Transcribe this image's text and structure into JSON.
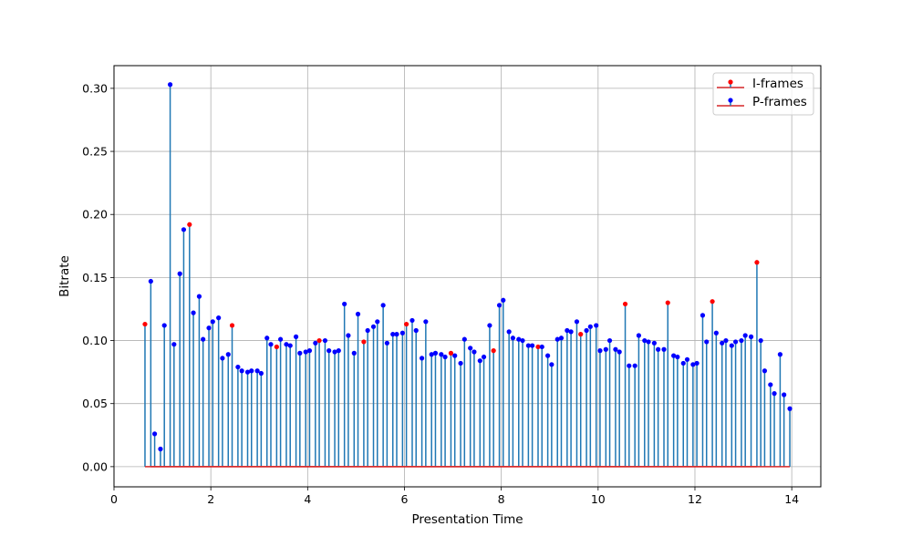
{
  "chart_data": {
    "type": "stem",
    "title": "",
    "xlabel": "Presentation Time",
    "ylabel": "Bitrate",
    "xlim": [
      0,
      14.6
    ],
    "ylim": [
      -0.016,
      0.318
    ],
    "xticks": [
      0,
      2,
      4,
      6,
      8,
      10,
      12,
      14
    ],
    "yticks": [
      0.0,
      0.05,
      0.1,
      0.15,
      0.2,
      0.25,
      0.3
    ],
    "ytick_labels": [
      "0.00",
      "0.05",
      "0.10",
      "0.15",
      "0.20",
      "0.25",
      "0.30"
    ],
    "grid": true,
    "legend_position": "top-right",
    "stem_color": "#1f77b4",
    "baseline_color": "#d62728",
    "series": [
      {
        "name": "I-frames",
        "marker_color": "#ff0000",
        "x": [
          0.64,
          1.56,
          2.44,
          3.36,
          4.24,
          5.16,
          6.04,
          6.96,
          7.84,
          8.76,
          9.64,
          10.56,
          11.44,
          12.36,
          13.28
        ],
        "y": [
          0.113,
          0.192,
          0.112,
          0.095,
          0.1,
          0.099,
          0.113,
          0.09,
          0.092,
          0.095,
          0.105,
          0.129,
          0.13,
          0.131,
          0.162
        ]
      },
      {
        "name": "P-frames",
        "marker_color": "#0000ff",
        "x": [
          0.76,
          0.84,
          0.96,
          1.04,
          1.16,
          1.24,
          1.36,
          1.44,
          1.64,
          1.76,
          1.84,
          1.96,
          2.04,
          2.16,
          2.24,
          2.36,
          2.56,
          2.64,
          2.76,
          2.84,
          2.96,
          3.04,
          3.16,
          3.24,
          3.44,
          3.56,
          3.64,
          3.76,
          3.84,
          3.96,
          4.04,
          4.16,
          4.36,
          4.44,
          4.56,
          4.64,
          4.76,
          4.84,
          4.96,
          5.04,
          5.24,
          5.36,
          5.44,
          5.56,
          5.64,
          5.76,
          5.84,
          5.96,
          6.16,
          6.24,
          6.36,
          6.44,
          6.56,
          6.64,
          6.76,
          6.84,
          7.04,
          7.16,
          7.24,
          7.36,
          7.44,
          7.56,
          7.64,
          7.76,
          7.96,
          8.04,
          8.16,
          8.24,
          8.36,
          8.44,
          8.56,
          8.64,
          8.84,
          8.96,
          9.04,
          9.16,
          9.24,
          9.36,
          9.44,
          9.56,
          9.76,
          9.84,
          9.96,
          10.04,
          10.16,
          10.24,
          10.36,
          10.44,
          10.64,
          10.76,
          10.84,
          10.96,
          11.04,
          11.16,
          11.24,
          11.36,
          11.56,
          11.64,
          11.76,
          11.84,
          11.96,
          12.04,
          12.16,
          12.24,
          12.44,
          12.56,
          12.64,
          12.76,
          12.84,
          12.96,
          13.04,
          13.16,
          13.36,
          13.44,
          13.56,
          13.64,
          13.76,
          13.84,
          13.96
        ],
        "y": [
          0.147,
          0.026,
          0.014,
          0.112,
          0.303,
          0.097,
          0.153,
          0.188,
          0.122,
          0.135,
          0.101,
          0.11,
          0.115,
          0.118,
          0.086,
          0.089,
          0.079,
          0.076,
          0.075,
          0.076,
          0.076,
          0.074,
          0.102,
          0.097,
          0.101,
          0.097,
          0.096,
          0.103,
          0.09,
          0.091,
          0.092,
          0.098,
          0.1,
          0.092,
          0.091,
          0.092,
          0.129,
          0.104,
          0.09,
          0.121,
          0.108,
          0.111,
          0.115,
          0.128,
          0.098,
          0.105,
          0.105,
          0.106,
          0.116,
          0.108,
          0.086,
          0.115,
          0.089,
          0.09,
          0.089,
          0.087,
          0.088,
          0.082,
          0.101,
          0.094,
          0.091,
          0.084,
          0.087,
          0.112,
          0.128,
          0.132,
          0.107,
          0.102,
          0.101,
          0.1,
          0.096,
          0.096,
          0.095,
          0.088,
          0.081,
          0.101,
          0.102,
          0.108,
          0.107,
          0.115,
          0.108,
          0.111,
          0.112,
          0.092,
          0.093,
          0.1,
          0.093,
          0.091,
          0.08,
          0.08,
          0.104,
          0.1,
          0.099,
          0.098,
          0.093,
          0.093,
          0.088,
          0.087,
          0.082,
          0.085,
          0.081,
          0.082,
          0.12,
          0.099,
          0.106,
          0.098,
          0.1,
          0.096,
          0.099,
          0.1,
          0.104,
          0.103,
          0.1,
          0.076,
          0.065,
          0.058,
          0.089,
          0.057,
          0.046
        ]
      }
    ]
  }
}
